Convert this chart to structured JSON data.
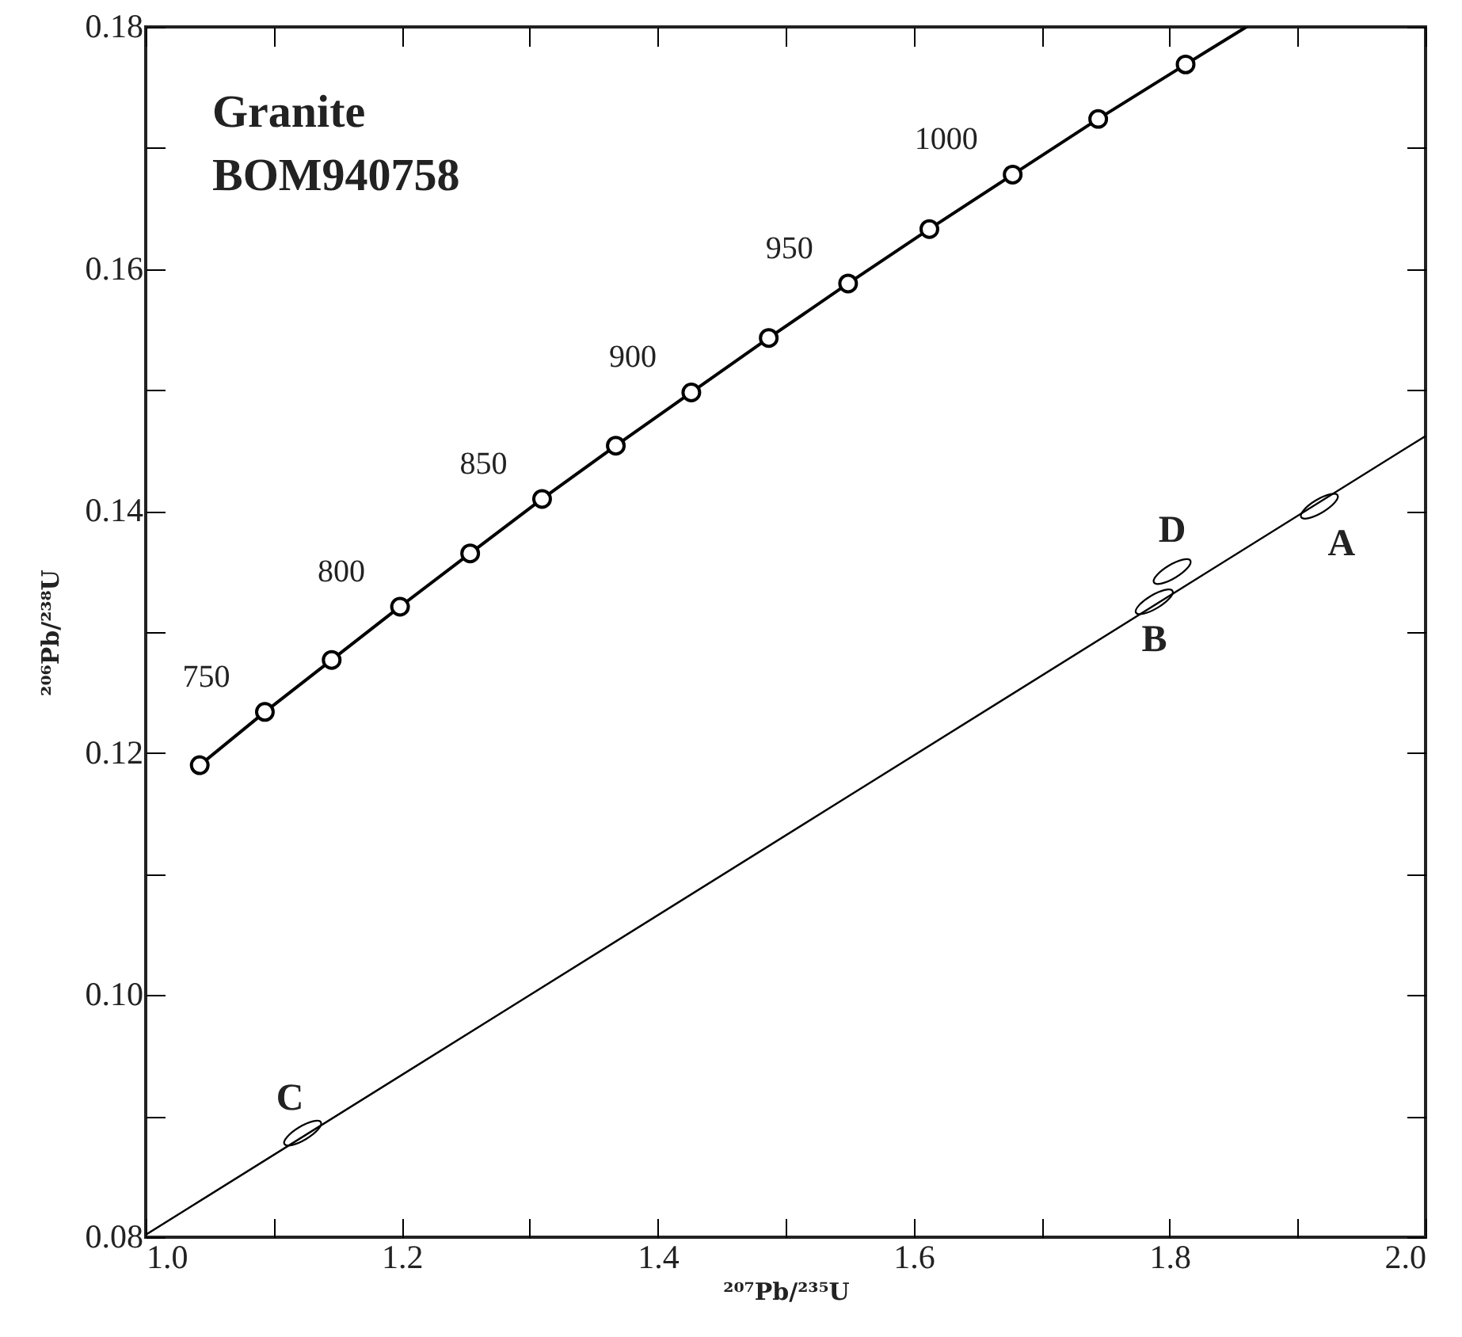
{
  "chart_data": {
    "type": "line",
    "title": "Granite\nBOM940758",
    "xlabel": "²⁰⁷Pb/²³⁵U",
    "ylabel": "²⁰⁶Pb/²³⁸U",
    "xlim": [
      1.0,
      2.0
    ],
    "ylim": [
      0.08,
      0.18
    ],
    "xticks": [
      {
        "value": 1.0,
        "label": "1.0"
      },
      {
        "value": 1.1,
        "label": null
      },
      1.2,
      {
        "value": 1.3,
        "label": null
      },
      1.4,
      {
        "value": 1.5,
        "label": null
      },
      1.6,
      {
        "value": 1.7,
        "label": null
      },
      1.8,
      {
        "value": 1.9,
        "label": null
      },
      {
        "value": 2.0,
        "label": "2.0"
      }
    ],
    "yticks": [
      0.08,
      {
        "value": 0.09,
        "label": null
      },
      {
        "value": 0.1,
        "label": "0.10"
      },
      {
        "value": 0.11,
        "label": null
      },
      0.12,
      {
        "value": 0.13,
        "label": null
      },
      0.14,
      {
        "value": 0.15,
        "label": null
      },
      0.16,
      {
        "value": 0.17,
        "label": null
      },
      0.18
    ],
    "grid": false,
    "series": [
      {
        "color": "#000000",
        "x": [
          1.0422,
          1.0931,
          1.1453,
          1.1987,
          1.2535,
          1.3097,
          1.3673,
          1.4263,
          1.4868,
          1.5488,
          1.6123,
          1.6774,
          1.7442,
          1.8125,
          1.86
        ],
        "values": [
          0.119,
          0.1234,
          0.1277,
          0.1321,
          0.1365,
          0.141,
          0.1454,
          0.1498,
          0.1543,
          0.1588,
          0.1633,
          0.1678,
          0.1724,
          0.1769,
          0.18
        ]
      },
      {
        "type": "scatter",
        "marker": "circle",
        "color": "#000000",
        "x": [
          1.0422,
          1.0931,
          1.1453,
          1.1987,
          1.2535,
          1.3097,
          1.3673,
          1.4263,
          1.4868,
          1.5488,
          1.6123,
          1.6774,
          1.7442,
          1.8125
        ],
        "values": [
          0.119,
          0.1234,
          0.1277,
          0.1321,
          0.1365,
          0.141,
          0.1454,
          0.1498,
          0.1543,
          0.1588,
          0.1633,
          0.1678,
          0.1724,
          0.1769
        ]
      },
      {
        "color": "#000000",
        "x": [
          1.0,
          2.0
        ],
        "values": [
          0.0802,
          0.1462
        ]
      },
      {
        "type": "scatter",
        "color": "#000000",
        "x": [
          1.917,
          1.788,
          1.1226,
          1.802
        ],
        "values": [
          0.1404,
          0.1325,
          0.0886,
          0.135
        ]
      }
    ],
    "annotations": [
      {
        "text": "750",
        "x": 1.0931,
        "y": 0.1234
      },
      {
        "text": "800",
        "x": 1.1987,
        "y": 0.1321
      },
      {
        "text": "850",
        "x": 1.3097,
        "y": 0.141
      },
      {
        "text": "900",
        "x": 1.4263,
        "y": 0.1498
      },
      {
        "text": "950",
        "x": 1.5488,
        "y": 0.1588
      },
      {
        "text": "1000",
        "x": 1.6774,
        "y": 0.1678
      },
      {
        "text": "A",
        "x": 1.917,
        "y": 0.1404
      },
      {
        "text": "B",
        "x": 1.788,
        "y": 0.1325
      },
      {
        "text": "C",
        "x": 1.1226,
        "y": 0.0886
      },
      {
        "text": "D",
        "x": 1.802,
        "y": 0.135
      }
    ]
  }
}
